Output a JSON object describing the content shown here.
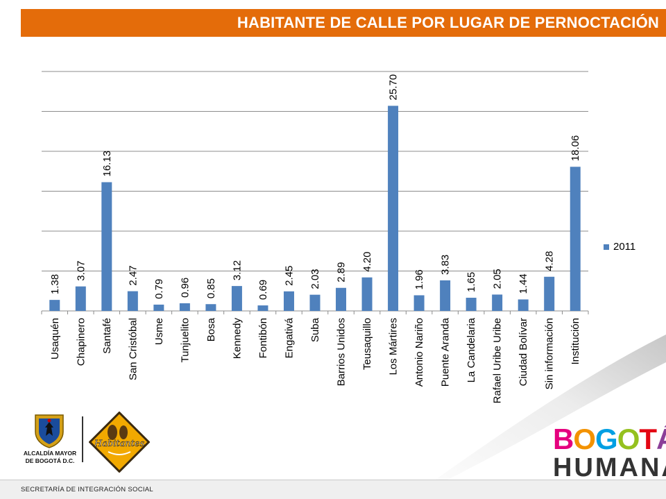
{
  "header": {
    "title": "HABITANTE DE CALLE POR LUGAR DE PERNOCTACIÓN"
  },
  "chart_data": {
    "type": "bar",
    "categories": [
      "Usaquén",
      "Chapinero",
      "Santafé",
      "San Cristóbal",
      "Usme",
      "Tunjuelito",
      "Bosa",
      "Kennedy",
      "Fontibón",
      "Engativá",
      "Suba",
      "Barrios Unidos",
      "Teusaquillo",
      "Los Mártires",
      "Antonio Nariño",
      "Puente Aranda",
      "La Candelaria",
      "Rafael Uribe Uribe",
      "Ciudad Bolívar",
      "Sin información",
      "Institución"
    ],
    "series": [
      {
        "name": "2011",
        "values": [
          1.38,
          3.07,
          16.13,
          2.47,
          0.79,
          0.96,
          0.85,
          3.12,
          0.69,
          2.45,
          2.03,
          2.89,
          4.2,
          25.7,
          1.96,
          3.83,
          1.65,
          2.05,
          1.44,
          4.28,
          18.06
        ]
      }
    ],
    "data_labels": [
      "1.38",
      "3.07",
      "16.13",
      "2.47",
      "0.79",
      "0.96",
      "0.85",
      "3.12",
      "0.69",
      "2.45",
      "2.03",
      "2.89",
      "4.20",
      "25.70",
      "1.96",
      "3.83",
      "1.65",
      "2.05",
      "1.44",
      "4.28",
      "18.06"
    ],
    "ylim": [
      0,
      30
    ],
    "grid": true,
    "legend_position": "right",
    "bar_color": "#4f81bd"
  },
  "logos": {
    "mayor_line1": "ALCALDÍA MAYOR",
    "mayor_line2": "DE BOGOTÁ D.C.",
    "badge_text": "Habitantes",
    "bogota_letters": [
      "B",
      "O",
      "G",
      "O",
      "T",
      "Á"
    ],
    "bogota_colors": [
      "#e5007e",
      "#f39200",
      "#009fe3",
      "#95c11f",
      "#e30613",
      "#8b3f98"
    ],
    "humana": "HUMANA"
  },
  "footer": {
    "text": "SECRETARÍA DE INTEGRACIÓN SOCIAL"
  }
}
